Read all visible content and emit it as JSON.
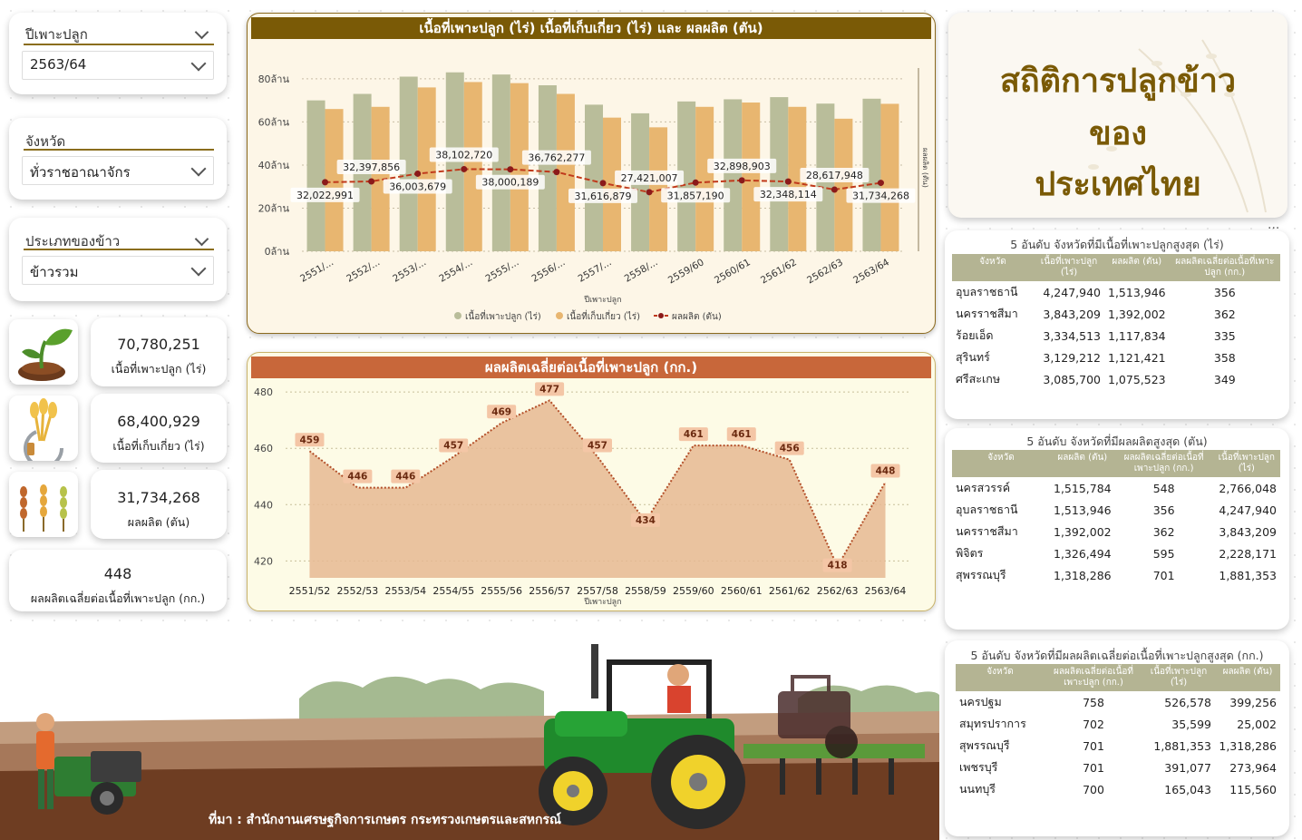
{
  "slicers": {
    "season": {
      "label": "ปีเพาะปลูก",
      "value": "2563/64"
    },
    "province": {
      "label": "จังหวัด",
      "value": "ทั่วราชอาณาจักร"
    },
    "rice_type": {
      "label": "ประเภทของข้าว",
      "value": "ข้าวรวม"
    }
  },
  "kpis": {
    "planted": {
      "value": "70,780,251",
      "label": "เนื้อที่เพาะปลูก (ไร่)",
      "icon": "seedling-icon"
    },
    "harvested": {
      "value": "68,400,929",
      "label": "เนื้อที่เก็บเกี่ยว (ไร่)",
      "icon": "sickle-wheat-icon"
    },
    "production": {
      "value": "31,734,268",
      "label": "ผลผลิต (ตัน)",
      "icon": "rice-ears-icon"
    },
    "yield": {
      "value": "448",
      "label": "ผลผลิตเฉลี่ยต่อเนื้อที่เพาะปลูก (กก.)"
    }
  },
  "main_title": {
    "line1": "สถิติการปลูกข้าว",
    "line2": "ของ",
    "line3": "ประเทศไทย"
  },
  "chart_area": {
    "title": "เนื้อที่เพาะปลูก (ไร่) เนื้อที่เก็บเกี่ยว (ไร่) และ ผลผลิต (ตัน)",
    "xlabel": "ปีเพาะปลูก",
    "ylabel_right": "ผลผลิต (ตัน)",
    "ytick_labels": [
      "0ล้าน",
      "20ล้าน",
      "40ล้าน",
      "60ล้าน",
      "80ล้าน"
    ],
    "xtick_labels": [
      "2551/...",
      "2552/...",
      "2553/...",
      "2554/...",
      "2555/...",
      "2556/...",
      "2557/...",
      "2558/...",
      "2559/60",
      "2560/61",
      "2561/62",
      "2562/63",
      "2563/64"
    ],
    "legend": [
      "เนื้อที่เพาะปลูก (ไร่)",
      "เนื้อที่เก็บเกี่ยว (ไร่)",
      "ผลผลิต (ตัน)"
    ],
    "production_labels": [
      "32,022,991",
      "32,397,856",
      "36,003,679",
      "38,102,720",
      "38,000,189",
      "36,762,277",
      "31,616,879",
      "27,421,007",
      "31,857,190",
      "32,898,903",
      "32,348,114",
      "28,617,948",
      "31,734,268"
    ]
  },
  "chart_yield": {
    "title": "ผลผลิตเฉลี่ยต่อเนื้อที่เพาะปลูก (กก.)",
    "xlabel": "ปีเพาะปลูก",
    "ytick_labels": [
      "420",
      "440",
      "460",
      "480"
    ],
    "xtick_labels": [
      "2551/52",
      "2552/53",
      "2553/54",
      "2554/55",
      "2555/56",
      "2556/57",
      "2557/58",
      "2558/59",
      "2559/60",
      "2560/61",
      "2561/62",
      "2562/63",
      "2563/64"
    ]
  },
  "chart_data": [
    {
      "type": "bar",
      "title": "เนื้อที่เพาะปลูก (ไร่) เนื้อที่เก็บเกี่ยว (ไร่) และ ผลผลิต (ตัน)",
      "xlabel": "ปีเพาะปลูก",
      "ylabel": "ผลผลิต (ตัน)",
      "ylim": [
        0,
        85000000
      ],
      "categories": [
        "2551/...",
        "2552/...",
        "2553/...",
        "2554/...",
        "2555/...",
        "2556/...",
        "2557/...",
        "2558/...",
        "2559/60",
        "2560/61",
        "2561/62",
        "2562/63",
        "2563/64"
      ],
      "series": [
        {
          "name": "เนื้อที่เพาะปลูก (ไร่)",
          "type": "bar",
          "values": [
            70000000,
            73000000,
            81000000,
            83000000,
            82000000,
            77000000,
            68000000,
            64000000,
            69500000,
            70500000,
            71500000,
            68500000,
            70780251
          ]
        },
        {
          "name": "เนื้อที่เก็บเกี่ยว (ไร่)",
          "type": "bar",
          "values": [
            66000000,
            67000000,
            76000000,
            78500000,
            78000000,
            73000000,
            62000000,
            57500000,
            67000000,
            69000000,
            67000000,
            61500000,
            68400929
          ]
        },
        {
          "name": "ผลผลิต (ตัน)",
          "type": "line",
          "values": [
            32022991,
            32397856,
            36003679,
            38102720,
            38000189,
            36762277,
            31616879,
            27421007,
            31857190,
            32898903,
            32348114,
            28617948,
            31734268
          ]
        }
      ]
    },
    {
      "type": "area",
      "title": "ผลผลิตเฉลี่ยต่อเนื้อที่เพาะปลูก (กก.)",
      "xlabel": "ปีเพาะปลูก",
      "ylim": [
        414,
        481
      ],
      "categories": [
        "2551/52",
        "2552/53",
        "2553/54",
        "2554/55",
        "2555/56",
        "2556/57",
        "2557/58",
        "2558/59",
        "2559/60",
        "2560/61",
        "2561/62",
        "2562/63",
        "2563/64"
      ],
      "values": [
        459,
        446,
        446,
        457,
        469,
        477,
        457,
        434,
        461,
        461,
        456,
        418,
        448
      ]
    }
  ],
  "table_area": {
    "title": "5 อันดับ จังหวัดที่มีเนื้อที่เพาะปลูกสูงสุด (ไร่)",
    "headers": [
      "จังหวัด",
      "เนื้อที่เพาะปลูก (ไร่)",
      "ผลผลิต (ตัน)",
      "ผลผลิตเฉลี่ยต่อเนื้อที่เพาะปลูก (กก.)"
    ],
    "rows": [
      [
        "อุบลราชธานี",
        "4,247,940",
        "1,513,946",
        "356"
      ],
      [
        "นครราชสีมา",
        "3,843,209",
        "1,392,002",
        "362"
      ],
      [
        "ร้อยเอ็ด",
        "3,334,513",
        "1,117,834",
        "335"
      ],
      [
        "สุรินทร์",
        "3,129,212",
        "1,121,421",
        "358"
      ],
      [
        "ศรีสะเกษ",
        "3,085,700",
        "1,075,523",
        "349"
      ]
    ]
  },
  "table_prod": {
    "title": "5 อันดับ จังหวัดที่มีผลผลิตสูงสุด (ตัน)",
    "headers": [
      "จังหวัด",
      "ผลผลิต (ตัน)",
      "ผลผลิตเฉลี่ยต่อเนื้อที่เพาะปลูก (กก.)",
      "เนื้อที่เพาะปลูก (ไร่)"
    ],
    "rows": [
      [
        "นครสวรรค์",
        "1,515,784",
        "548",
        "2,766,048"
      ],
      [
        "อุบลราชธานี",
        "1,513,946",
        "356",
        "4,247,940"
      ],
      [
        "นครราชสีมา",
        "1,392,002",
        "362",
        "3,843,209"
      ],
      [
        "พิจิตร",
        "1,326,494",
        "595",
        "2,228,171"
      ],
      [
        "สุพรรณบุรี",
        "1,318,286",
        "701",
        "1,881,353"
      ]
    ]
  },
  "table_yield": {
    "title": "5 อันดับ จังหวัดที่มีผลผลิตเฉลี่ยต่อเนื้อที่เพาะปลูกสูงสุด (กก.)",
    "headers": [
      "จังหวัด",
      "ผลผลิตเฉลี่ยต่อเนื้อที่เพาะปลูก (กก.)",
      "เนื้อที่เพาะปลูก (ไร่)",
      "ผลผลิต (ตัน)"
    ],
    "rows": [
      [
        "นครปฐม",
        "758",
        "526,578",
        "399,256"
      ],
      [
        "สมุทรปราการ",
        "702",
        "35,599",
        "25,002"
      ],
      [
        "สุพรรณบุรี",
        "701",
        "1,881,353",
        "1,318,286"
      ],
      [
        "เพชรบุรี",
        "701",
        "391,077",
        "273,964"
      ],
      [
        "นนทบุรี",
        "700",
        "165,043",
        "115,560"
      ]
    ]
  },
  "more_options": "...",
  "source": "ที่มา : สำนักงานเศรษฐกิจการเกษตร กระทรวงเกษตรและสหกรณ์",
  "colors": {
    "bar_planted": "#b9bd9a",
    "bar_harvested": "#e8b670",
    "line_production": "#c0391b",
    "title_brown": "#7a5a06",
    "title_orange": "#c8673a",
    "header_olive": "#b4b493"
  }
}
